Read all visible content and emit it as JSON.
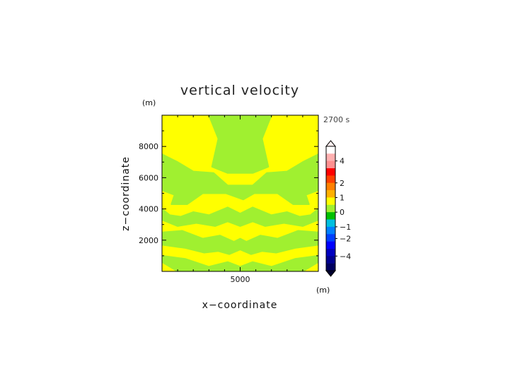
{
  "chart_data": {
    "type": "heatmap",
    "title": "vertical velocity",
    "xlabel": "x−coordinate",
    "ylabel": "z−coordinate",
    "x_unit": "(m)",
    "y_unit": "(m)",
    "time_label": "2700 s",
    "xlim": [
      0,
      10000
    ],
    "ylim": [
      0,
      10000
    ],
    "x_ticks": [
      5000
    ],
    "x_tick_labels": [
      "5000"
    ],
    "y_ticks": [
      2000,
      4000,
      6000,
      8000
    ],
    "y_tick_labels": [
      "2000",
      "4000",
      "6000",
      "8000"
    ],
    "field": {
      "background_color": "#ffff00",
      "regions": [
        {
          "color": "#a0f030",
          "description_points_xz": [
            [
              3000,
              10000
            ],
            [
              7000,
              10000
            ],
            [
              6400,
              8500
            ],
            [
              6800,
              6700
            ],
            [
              5800,
              6300
            ],
            [
              4200,
              6300
            ],
            [
              3200,
              6700
            ],
            [
              3600,
              8500
            ]
          ]
        },
        {
          "color": "#a0f030",
          "description_points_xz": [
            [
              0,
              7500
            ],
            [
              1000,
              7000
            ],
            [
              2000,
              6400
            ],
            [
              3300,
              6300
            ],
            [
              4200,
              5500
            ],
            [
              5800,
              5500
            ],
            [
              6700,
              6300
            ],
            [
              8000,
              6400
            ],
            [
              9000,
              7000
            ],
            [
              10000,
              7500
            ],
            [
              10000,
              5200
            ],
            [
              9200,
              4900
            ],
            [
              9400,
              4300
            ],
            [
              8400,
              4300
            ],
            [
              7400,
              5000
            ],
            [
              5900,
              5000
            ],
            [
              5200,
              4600
            ],
            [
              4100,
              5000
            ],
            [
              2600,
              5000
            ],
            [
              1600,
              4300
            ],
            [
              600,
              4300
            ],
            [
              800,
              4900
            ],
            [
              0,
              5200
            ]
          ]
        },
        {
          "color": "#a0f030",
          "description_points_xz": [
            [
              0,
              4000
            ],
            [
              500,
              3600
            ],
            [
              1200,
              3500
            ],
            [
              2000,
              3800
            ],
            [
              3000,
              3600
            ],
            [
              4200,
              4100
            ],
            [
              5000,
              3700
            ],
            [
              5800,
              4100
            ],
            [
              7000,
              3600
            ],
            [
              8000,
              3800
            ],
            [
              8800,
              3500
            ],
            [
              9500,
              3600
            ],
            [
              10000,
              4000
            ],
            [
              10000,
              3300
            ],
            [
              9000,
              2900
            ],
            [
              7800,
              3100
            ],
            [
              6600,
              2900
            ],
            [
              5800,
              3200
            ],
            [
              5000,
              2900
            ],
            [
              4200,
              3200
            ],
            [
              3400,
              2900
            ],
            [
              2200,
              3100
            ],
            [
              1000,
              2900
            ],
            [
              0,
              3300
            ]
          ]
        },
        {
          "color": "#a0f030",
          "description_points_xz": [
            [
              0,
              2500
            ],
            [
              1300,
              2600
            ],
            [
              2600,
              2100
            ],
            [
              3700,
              2300
            ],
            [
              4600,
              1900
            ],
            [
              5000,
              2100
            ],
            [
              5400,
              1900
            ],
            [
              6300,
              2300
            ],
            [
              7400,
              2100
            ],
            [
              8700,
              2600
            ],
            [
              10000,
              2500
            ],
            [
              10000,
              1700
            ],
            [
              8500,
              1500
            ],
            [
              7300,
              1200
            ],
            [
              6400,
              1300
            ],
            [
              5700,
              1100
            ],
            [
              5000,
              1400
            ],
            [
              4300,
              1100
            ],
            [
              3600,
              1300
            ],
            [
              2700,
              1200
            ],
            [
              1500,
              1500
            ],
            [
              0,
              1700
            ]
          ]
        },
        {
          "color": "#a0f030",
          "description_points_xz": [
            [
              0,
              1000
            ],
            [
              1500,
              800
            ],
            [
              3000,
              300
            ],
            [
              4200,
              600
            ],
            [
              5000,
              300
            ],
            [
              5800,
              600
            ],
            [
              7000,
              300
            ],
            [
              8500,
              800
            ],
            [
              10000,
              1000
            ],
            [
              10000,
              600
            ],
            [
              9000,
              0
            ],
            [
              1000,
              0
            ],
            [
              0,
              600
            ]
          ]
        }
      ]
    },
    "colorbar": {
      "tick_values": [
        4,
        2,
        1,
        0,
        -1,
        -2,
        -4
      ],
      "tick_labels": [
        "4",
        "2",
        "1",
        "0",
        "−1",
        "−2",
        "−4"
      ],
      "colors_top_to_bottom": [
        "#ffffff",
        "#ffb0b0",
        "#ff9090",
        "#ff0000",
        "#ff4000",
        "#ff8000",
        "#ffb000",
        "#ffff00",
        "#a0f030",
        "#00c000",
        "#00c0e0",
        "#0080ff",
        "#0040ff",
        "#0000ff",
        "#0000c0",
        "#000090",
        "#000060"
      ]
    }
  }
}
